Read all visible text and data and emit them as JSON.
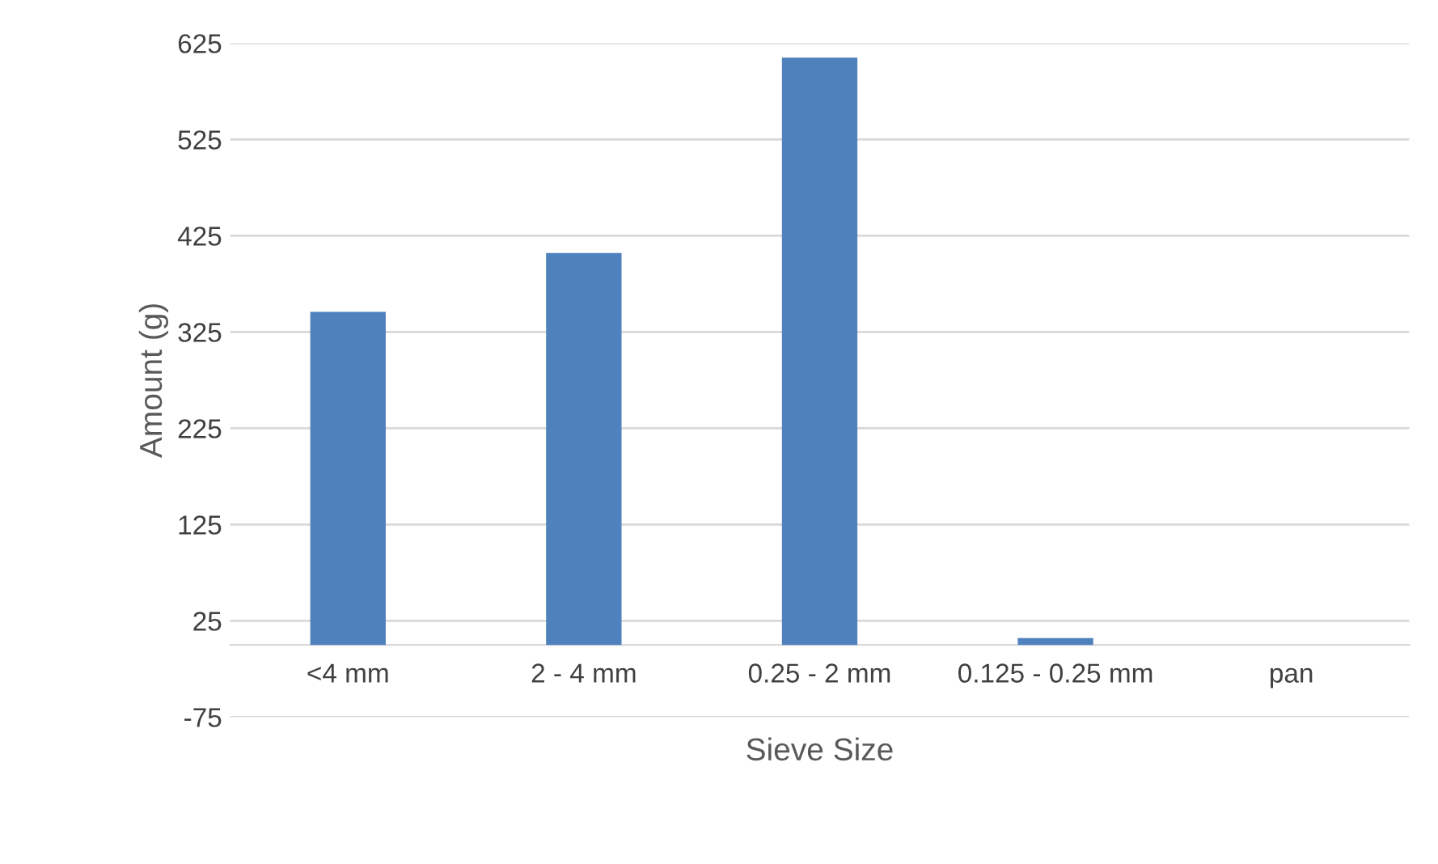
{
  "chart_data": {
    "type": "bar",
    "xlabel": "Sieve Size",
    "ylabel": "Amount (g)",
    "categories": [
      "<4 mm",
      "2 - 4 mm",
      "0.25 - 2 mm",
      "0.125 - 0.25 mm",
      "pan"
    ],
    "values": [
      346,
      407,
      610,
      7,
      0
    ],
    "color": "#4f81bd",
    "ylim": [
      -75,
      625
    ],
    "yticks": [
      -75,
      25,
      125,
      225,
      325,
      425,
      525,
      625
    ],
    "grid": "y"
  }
}
